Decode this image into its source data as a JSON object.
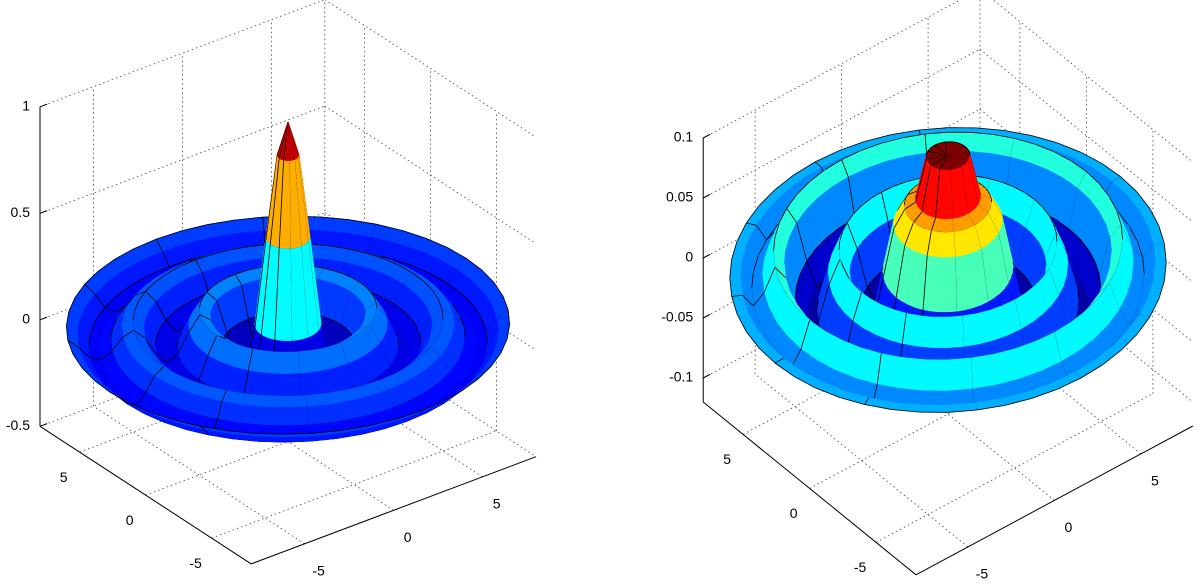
{
  "chart_data": [
    {
      "type": "surface",
      "colormap": "jet",
      "grid": true,
      "r": [
        0,
        0.5,
        1,
        1.5,
        2,
        2.5,
        3,
        3.5,
        4,
        4.5,
        5,
        5.5,
        6,
        6.5,
        7,
        7.5,
        8,
        8.5,
        9,
        9.5,
        10
      ],
      "values": [
        1,
        0.841,
        0.455,
        0.047,
        -0.189,
        -0.192,
        -0.047,
        0.094,
        0.124,
        0.046,
        -0.054,
        -0.091,
        -0.045,
        0.032,
        0.071,
        0.043,
        -0.018,
        -0.057,
        -0.042,
        0.008,
        0.046
      ],
      "xlim": [
        -8,
        8
      ],
      "ylim": [
        -8,
        8
      ],
      "zlim": [
        -0.5,
        1
      ],
      "xticks": [
        -5,
        0,
        5
      ],
      "yticks": [
        -5,
        0,
        5
      ],
      "zticks": [
        -0.5,
        0,
        0.5,
        1
      ]
    },
    {
      "type": "surface",
      "colormap": "jet",
      "grid": true,
      "r": [
        0,
        0.5,
        1,
        1.5,
        2,
        2.5,
        3,
        3.5,
        4,
        4.5,
        5,
        5.5,
        6,
        6.5,
        7,
        7.5,
        8,
        8.5,
        9,
        9.5,
        10
      ],
      "values": [
        0.095,
        0.095,
        0.095,
        0.06,
        0.055,
        0.04,
        0,
        -0.04,
        -0.03,
        0,
        0.02,
        0,
        -0.03,
        -0.04,
        -0.02,
        0.01,
        0.02,
        0,
        -0.01,
        0,
        0
      ],
      "xlim": [
        -8,
        8
      ],
      "ylim": [
        -8,
        8
      ],
      "zlim": [
        -0.12,
        0.1
      ],
      "xticks": [
        -5,
        0,
        5
      ],
      "yticks": [
        -5,
        0,
        5
      ],
      "zticks": [
        -0.1,
        -0.05,
        0,
        0.05,
        0.1
      ]
    }
  ]
}
